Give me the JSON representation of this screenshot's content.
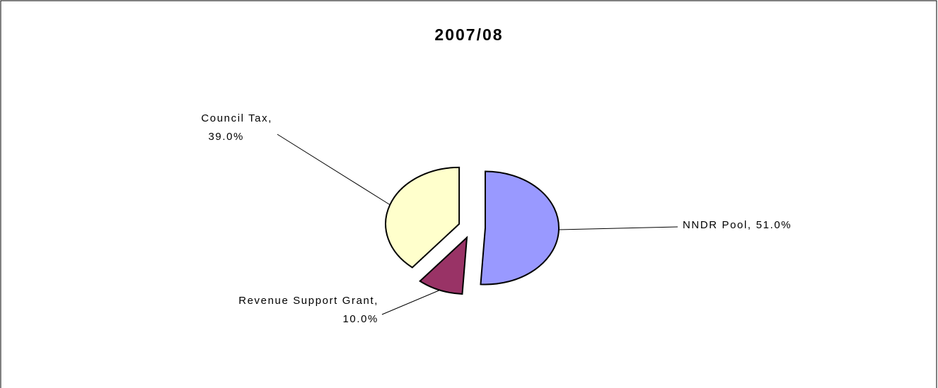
{
  "chart_data": {
    "type": "pie",
    "title": "2007/08",
    "categories": [
      "NNDR Pool,",
      "Revenue Support Grant,",
      "Council Tax,"
    ],
    "values": [
      51.0,
      10.0,
      39.0
    ],
    "value_labels": [
      "51.0%",
      "10.0%",
      "39.0%"
    ],
    "colors": [
      "#9999ff",
      "#993366",
      "#ffffcc"
    ]
  }
}
